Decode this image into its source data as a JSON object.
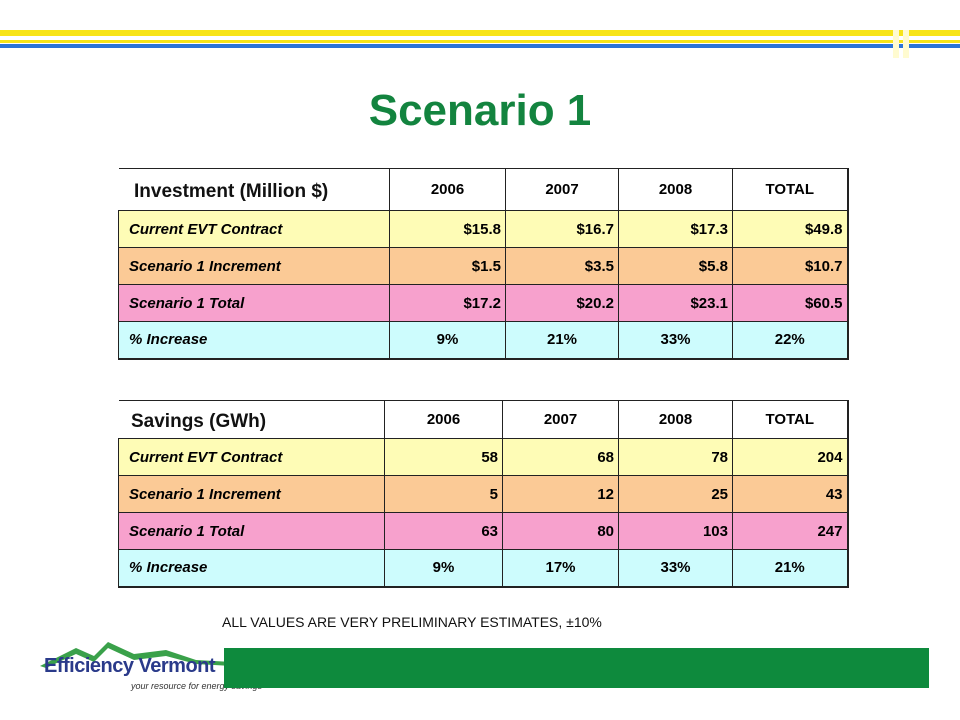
{
  "slide": {
    "title": "Scenario 1",
    "note": "ALL VALUES ARE VERY PRELIMINARY ESTIMATES, ±10%",
    "colors": {
      "title": "#13843f",
      "stripe_yellow": "#f7e419",
      "stripe_blue": "#2b74d8",
      "brand_green": "#0e8a3d",
      "row_current": "#fefcb6",
      "row_increment": "#fbca96",
      "row_total": "#f7a1cd",
      "row_increase": "#cdfcfd"
    }
  },
  "investment": {
    "label": "Investment (Million $)",
    "columns": [
      "2006",
      "2007",
      "2008",
      "TOTAL"
    ],
    "rows": [
      {
        "label": "Current EVT Contract",
        "values": [
          "$15.8",
          "$16.7",
          "$17.3",
          "$49.8"
        ]
      },
      {
        "label": "Scenario 1 Increment",
        "values": [
          "$1.5",
          "$3.5",
          "$5.8",
          "$10.7"
        ]
      },
      {
        "label": "Scenario 1 Total",
        "values": [
          "$17.2",
          "$20.2",
          "$23.1",
          "$60.5"
        ]
      },
      {
        "label": "% Increase",
        "values": [
          "9%",
          "21%",
          "33%",
          "22%"
        ]
      }
    ]
  },
  "savings": {
    "label": "Savings (GWh)",
    "columns": [
      "2006",
      "2007",
      "2008",
      "TOTAL"
    ],
    "rows": [
      {
        "label": "Current EVT Contract",
        "values": [
          "58",
          "68",
          "78",
          "204"
        ]
      },
      {
        "label": "Scenario 1 Increment",
        "values": [
          "5",
          "12",
          "25",
          "43"
        ]
      },
      {
        "label": "Scenario 1 Total",
        "values": [
          "63",
          "80",
          "103",
          "247"
        ]
      },
      {
        "label": "% Increase",
        "values": [
          "9%",
          "17%",
          "33%",
          "21%"
        ]
      }
    ]
  },
  "logo": {
    "name": "Efficiency Vermont",
    "tagline": "your resource for energy savings",
    "icon": "mountain-logo-icon"
  }
}
